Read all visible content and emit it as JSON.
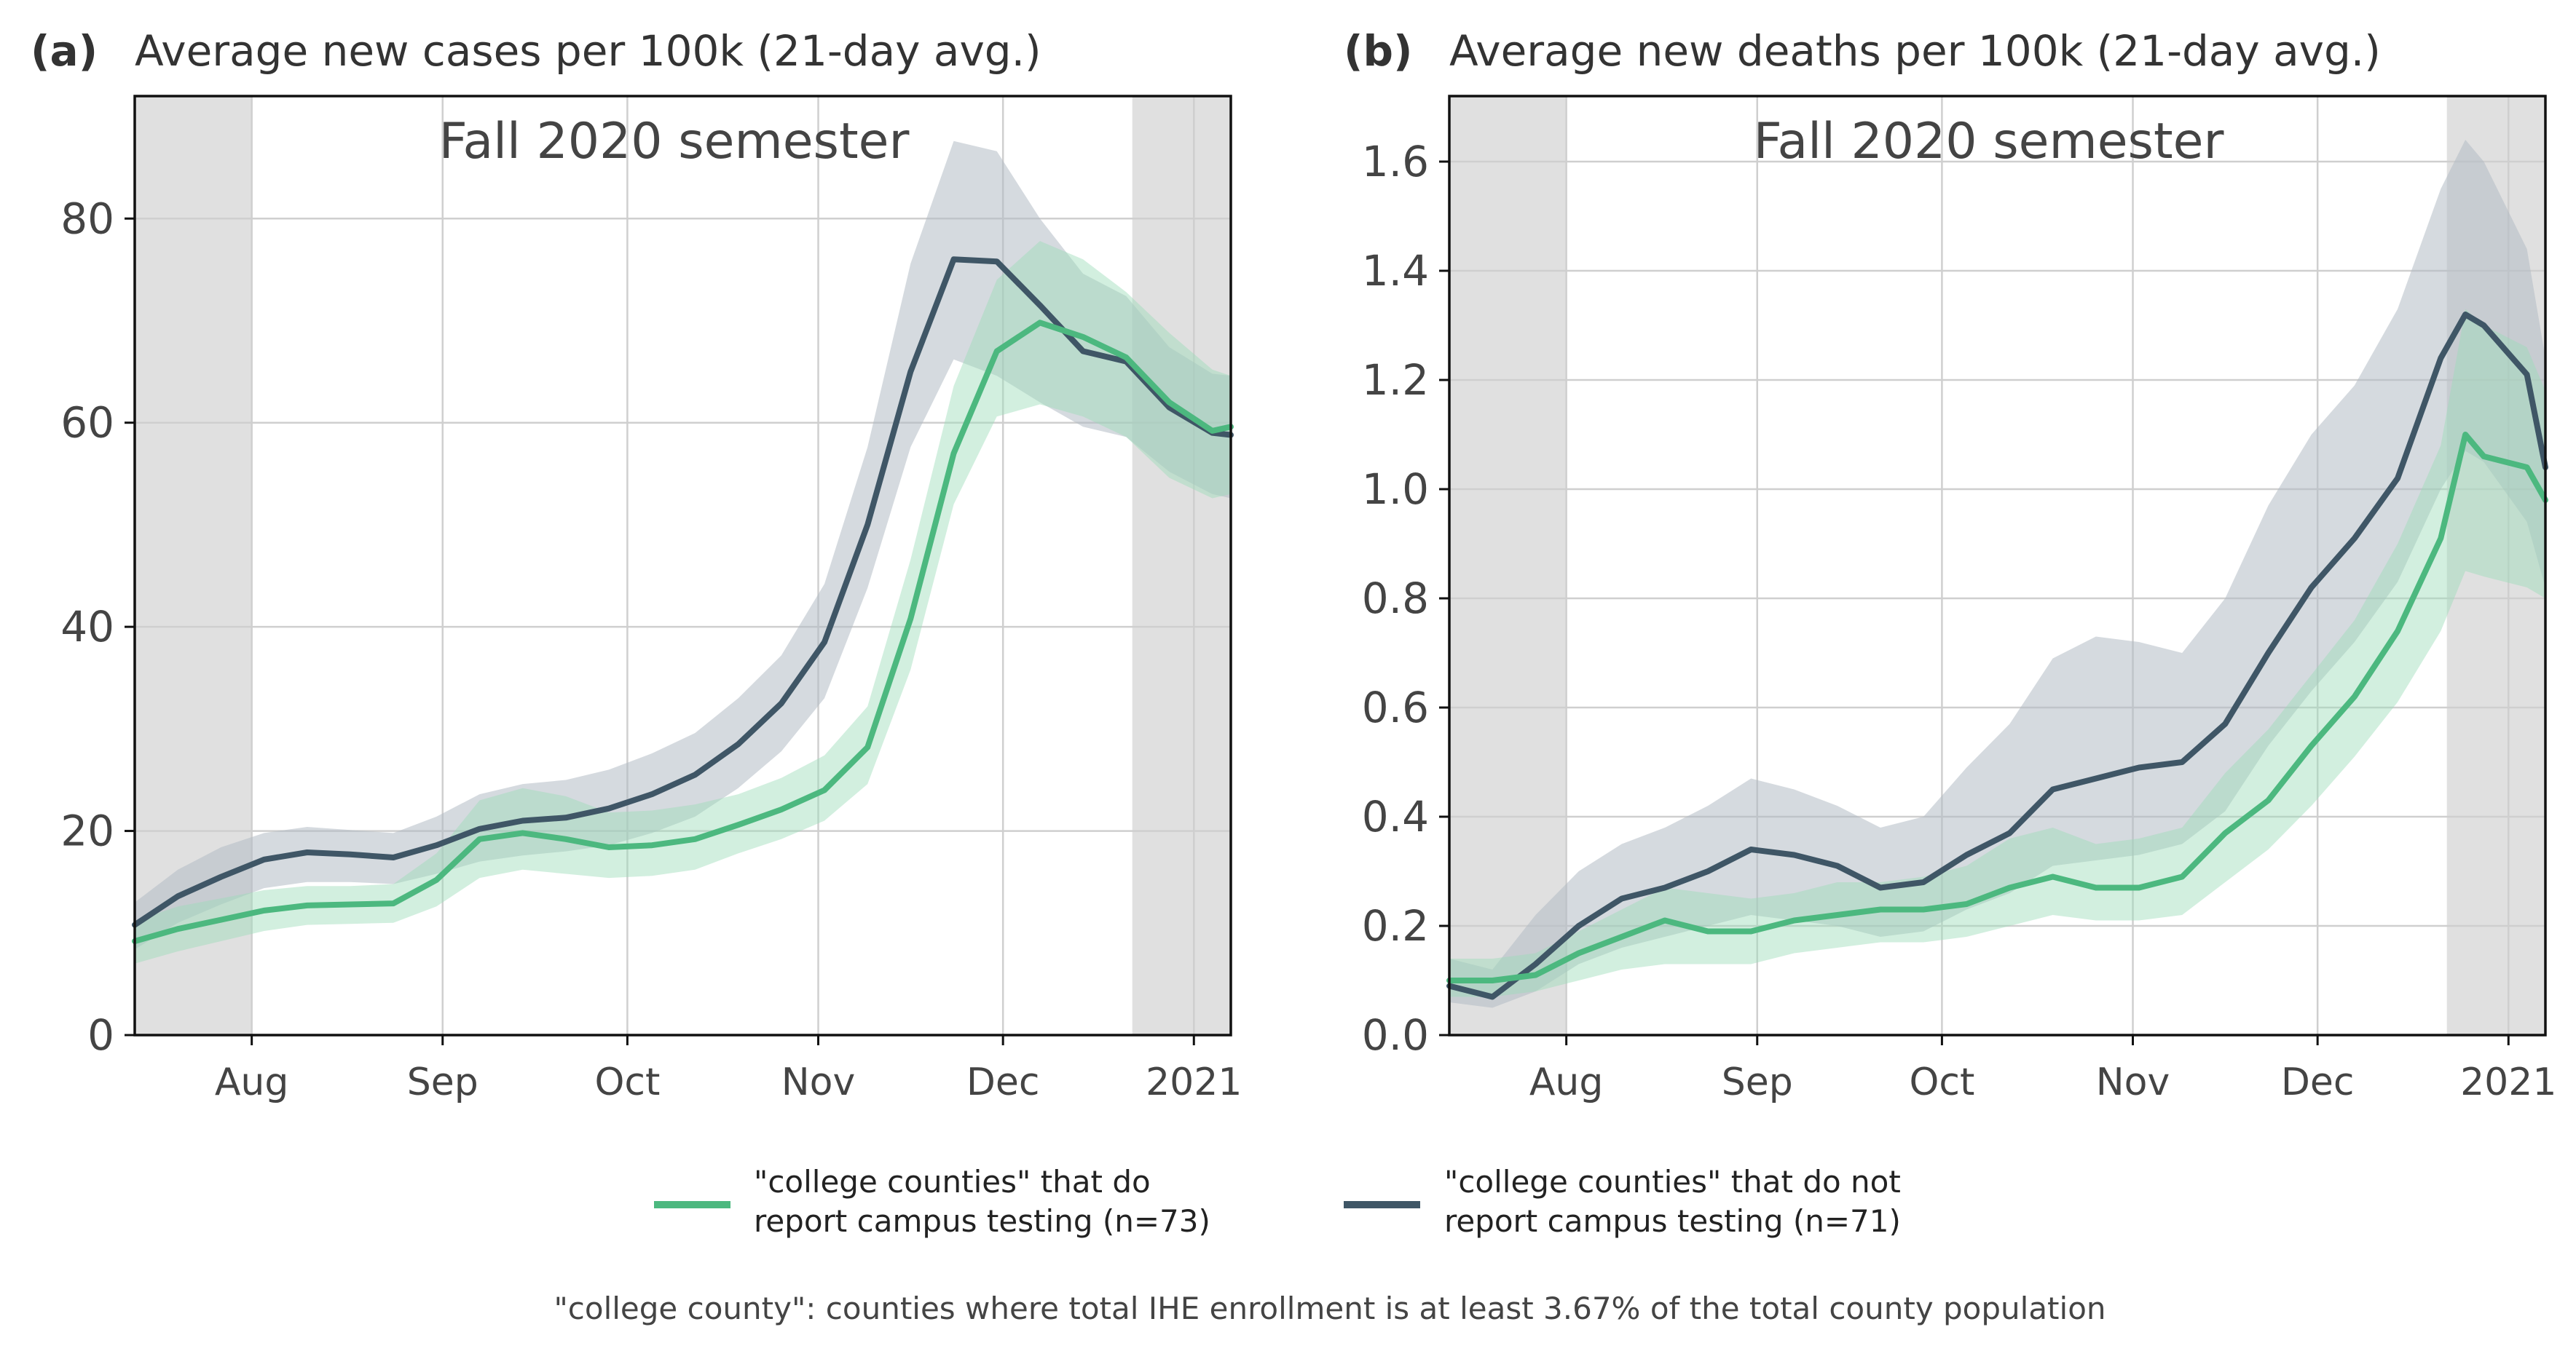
{
  "colors": {
    "tested": "#4cb87f",
    "tested_band": "#9bdcb8",
    "untested": "#3f5666",
    "untested_band": "#b2bcc5",
    "shade": "#e0e0e0",
    "grid": "#cfcfcf",
    "text": "#444444"
  },
  "legend": {
    "tested_label": [
      "\"college counties\" that do",
      "report campus testing (n=73)"
    ],
    "untested_label": [
      "\"college counties\" that do not",
      "report campus testing (n=71)"
    ]
  },
  "footnote": "\"college county\": counties where total IHE enrollment is at least 3.67% of the total county population",
  "chart_data": [
    {
      "type": "line",
      "panel": "(a)",
      "title": "Average new cases per 100k (21-day avg.)",
      "annotation": "Fall 2020 semester",
      "x_axis": "date",
      "xlim": [
        "2020-07-13",
        "2021-01-07"
      ],
      "ylim": [
        0,
        92
      ],
      "yticks": [
        0,
        20,
        40,
        60,
        80
      ],
      "xticks": [
        {
          "date": "2020-08-01",
          "label": "Aug"
        },
        {
          "date": "2020-09-01",
          "label": "Sep"
        },
        {
          "date": "2020-10-01",
          "label": "Oct"
        },
        {
          "date": "2020-11-01",
          "label": "Nov"
        },
        {
          "date": "2020-12-01",
          "label": "Dec"
        },
        {
          "date": "2021-01-01",
          "label": "2021"
        }
      ],
      "shaded_periods": [
        [
          "2020-07-13",
          "2020-08-01"
        ],
        [
          "2020-12-22",
          "2021-01-07"
        ]
      ],
      "grid": true,
      "series": [
        {
          "key": "tested",
          "x": [
            "2020-07-13",
            "2020-07-20",
            "2020-07-27",
            "2020-08-03",
            "2020-08-10",
            "2020-08-17",
            "2020-08-24",
            "2020-08-31",
            "2020-09-07",
            "2020-09-14",
            "2020-09-21",
            "2020-09-28",
            "2020-10-05",
            "2020-10-12",
            "2020-10-19",
            "2020-10-26",
            "2020-11-02",
            "2020-11-09",
            "2020-11-16",
            "2020-11-23",
            "2020-11-30",
            "2020-12-07",
            "2020-12-14",
            "2020-12-21",
            "2020-12-28",
            "2021-01-04",
            "2021-01-07"
          ],
          "y": [
            9.2,
            10.4,
            11.3,
            12.2,
            12.7,
            12.8,
            12.9,
            15.2,
            19.2,
            19.8,
            19.2,
            18.4,
            18.6,
            19.2,
            20.6,
            22.1,
            24.0,
            28.2,
            40.8,
            57.0,
            67.0,
            69.8,
            68.4,
            66.4,
            62.0,
            59.2,
            59.6
          ],
          "lower": [
            7.0,
            8.2,
            9.2,
            10.2,
            10.8,
            10.9,
            11.0,
            12.6,
            15.4,
            16.2,
            15.8,
            15.4,
            15.6,
            16.2,
            17.8,
            19.2,
            21.0,
            24.6,
            35.8,
            52.0,
            60.6,
            61.8,
            60.6,
            58.6,
            54.6,
            52.6,
            53.0
          ],
          "upper": [
            11.2,
            12.6,
            13.4,
            14.2,
            14.6,
            14.6,
            14.8,
            17.8,
            23.0,
            24.2,
            23.4,
            21.8,
            22.0,
            22.6,
            23.6,
            25.2,
            27.4,
            32.2,
            46.6,
            63.6,
            74.0,
            77.8,
            76.0,
            72.8,
            68.8,
            65.2,
            64.6
          ]
        },
        {
          "key": "untested",
          "x": [
            "2020-07-13",
            "2020-07-20",
            "2020-07-27",
            "2020-08-03",
            "2020-08-10",
            "2020-08-17",
            "2020-08-24",
            "2020-08-31",
            "2020-09-07",
            "2020-09-14",
            "2020-09-21",
            "2020-09-28",
            "2020-10-05",
            "2020-10-12",
            "2020-10-19",
            "2020-10-26",
            "2020-11-02",
            "2020-11-09",
            "2020-11-16",
            "2020-11-23",
            "2020-11-30",
            "2020-12-07",
            "2020-12-14",
            "2020-12-21",
            "2020-12-28",
            "2021-01-04",
            "2021-01-07"
          ],
          "y": [
            10.8,
            13.6,
            15.5,
            17.2,
            17.9,
            17.7,
            17.4,
            18.6,
            20.2,
            21.0,
            21.3,
            22.2,
            23.6,
            25.5,
            28.5,
            32.5,
            38.5,
            50.0,
            65.0,
            76.0,
            75.8,
            71.5,
            67.0,
            66.0,
            61.5,
            59.0,
            58.8
          ],
          "lower": [
            8.4,
            11.0,
            12.8,
            14.4,
            15.0,
            15.0,
            14.8,
            15.8,
            17.0,
            17.6,
            18.0,
            18.6,
            19.8,
            21.4,
            24.2,
            27.8,
            33.0,
            43.8,
            57.6,
            66.2,
            64.6,
            62.0,
            59.6,
            58.6,
            55.2,
            53.0,
            52.6
          ],
          "upper": [
            13.0,
            16.2,
            18.4,
            19.8,
            20.4,
            20.1,
            19.8,
            21.4,
            23.6,
            24.6,
            25.0,
            26.0,
            27.6,
            29.6,
            33.0,
            37.2,
            44.2,
            57.6,
            75.6,
            87.6,
            86.6,
            80.0,
            74.6,
            72.4,
            67.4,
            64.8,
            64.6
          ]
        }
      ]
    },
    {
      "type": "line",
      "panel": "(b)",
      "title": "Average new deaths per 100k (21-day avg.)",
      "annotation": "Fall 2020 semester",
      "x_axis": "date",
      "xlim": [
        "2020-07-13",
        "2021-01-07"
      ],
      "ylim": [
        0,
        1.72
      ],
      "yticks": [
        0.0,
        0.2,
        0.4,
        0.6,
        0.8,
        1.0,
        1.2,
        1.4,
        1.6
      ],
      "xticks": [
        {
          "date": "2020-08-01",
          "label": "Aug"
        },
        {
          "date": "2020-09-01",
          "label": "Sep"
        },
        {
          "date": "2020-10-01",
          "label": "Oct"
        },
        {
          "date": "2020-11-01",
          "label": "Nov"
        },
        {
          "date": "2020-12-01",
          "label": "Dec"
        },
        {
          "date": "2021-01-01",
          "label": "2021"
        }
      ],
      "shaded_periods": [
        [
          "2020-07-13",
          "2020-08-01"
        ],
        [
          "2020-12-22",
          "2021-01-07"
        ]
      ],
      "grid": true,
      "series": [
        {
          "key": "tested",
          "x": [
            "2020-07-13",
            "2020-07-20",
            "2020-07-27",
            "2020-08-03",
            "2020-08-10",
            "2020-08-17",
            "2020-08-24",
            "2020-08-31",
            "2020-09-07",
            "2020-09-14",
            "2020-09-21",
            "2020-09-28",
            "2020-10-05",
            "2020-10-12",
            "2020-10-19",
            "2020-10-26",
            "2020-11-02",
            "2020-11-09",
            "2020-11-16",
            "2020-11-23",
            "2020-11-30",
            "2020-12-07",
            "2020-12-14",
            "2020-12-21",
            "2020-12-25",
            "2020-12-28",
            "2021-01-04",
            "2021-01-07"
          ],
          "y": [
            0.1,
            0.1,
            0.11,
            0.15,
            0.18,
            0.21,
            0.19,
            0.19,
            0.21,
            0.22,
            0.23,
            0.23,
            0.24,
            0.27,
            0.29,
            0.27,
            0.27,
            0.29,
            0.37,
            0.43,
            0.53,
            0.62,
            0.74,
            0.91,
            1.1,
            1.06,
            1.04,
            0.98
          ],
          "lower": [
            0.07,
            0.07,
            0.08,
            0.1,
            0.12,
            0.13,
            0.13,
            0.13,
            0.15,
            0.16,
            0.17,
            0.17,
            0.18,
            0.2,
            0.22,
            0.21,
            0.21,
            0.22,
            0.28,
            0.34,
            0.42,
            0.51,
            0.61,
            0.74,
            0.85,
            0.84,
            0.82,
            0.8
          ],
          "upper": [
            0.14,
            0.14,
            0.15,
            0.19,
            0.23,
            0.27,
            0.26,
            0.25,
            0.26,
            0.28,
            0.28,
            0.29,
            0.31,
            0.36,
            0.38,
            0.35,
            0.36,
            0.38,
            0.48,
            0.56,
            0.66,
            0.76,
            0.9,
            1.08,
            1.33,
            1.3,
            1.26,
            1.18
          ]
        },
        {
          "key": "untested",
          "x": [
            "2020-07-13",
            "2020-07-20",
            "2020-07-27",
            "2020-08-03",
            "2020-08-10",
            "2020-08-17",
            "2020-08-24",
            "2020-08-31",
            "2020-09-07",
            "2020-09-14",
            "2020-09-21",
            "2020-09-28",
            "2020-10-05",
            "2020-10-12",
            "2020-10-19",
            "2020-10-26",
            "2020-11-02",
            "2020-11-09",
            "2020-11-16",
            "2020-11-23",
            "2020-11-30",
            "2020-12-07",
            "2020-12-14",
            "2020-12-21",
            "2020-12-25",
            "2020-12-28",
            "2021-01-04",
            "2021-01-07"
          ],
          "y": [
            0.09,
            0.07,
            0.13,
            0.2,
            0.25,
            0.27,
            0.3,
            0.34,
            0.33,
            0.31,
            0.27,
            0.28,
            0.33,
            0.37,
            0.45,
            0.47,
            0.49,
            0.5,
            0.57,
            0.7,
            0.82,
            0.91,
            1.02,
            1.24,
            1.32,
            1.3,
            1.21,
            1.04
          ],
          "lower": [
            0.06,
            0.05,
            0.08,
            0.13,
            0.16,
            0.18,
            0.2,
            0.22,
            0.21,
            0.2,
            0.18,
            0.19,
            0.23,
            0.26,
            0.31,
            0.32,
            0.33,
            0.35,
            0.41,
            0.53,
            0.63,
            0.72,
            0.83,
            1.0,
            1.07,
            1.05,
            0.94,
            0.82
          ],
          "upper": [
            0.14,
            0.12,
            0.22,
            0.3,
            0.35,
            0.38,
            0.42,
            0.47,
            0.45,
            0.42,
            0.38,
            0.4,
            0.49,
            0.57,
            0.69,
            0.73,
            0.72,
            0.7,
            0.8,
            0.97,
            1.1,
            1.19,
            1.33,
            1.55,
            1.64,
            1.6,
            1.44,
            1.24
          ]
        }
      ]
    }
  ]
}
